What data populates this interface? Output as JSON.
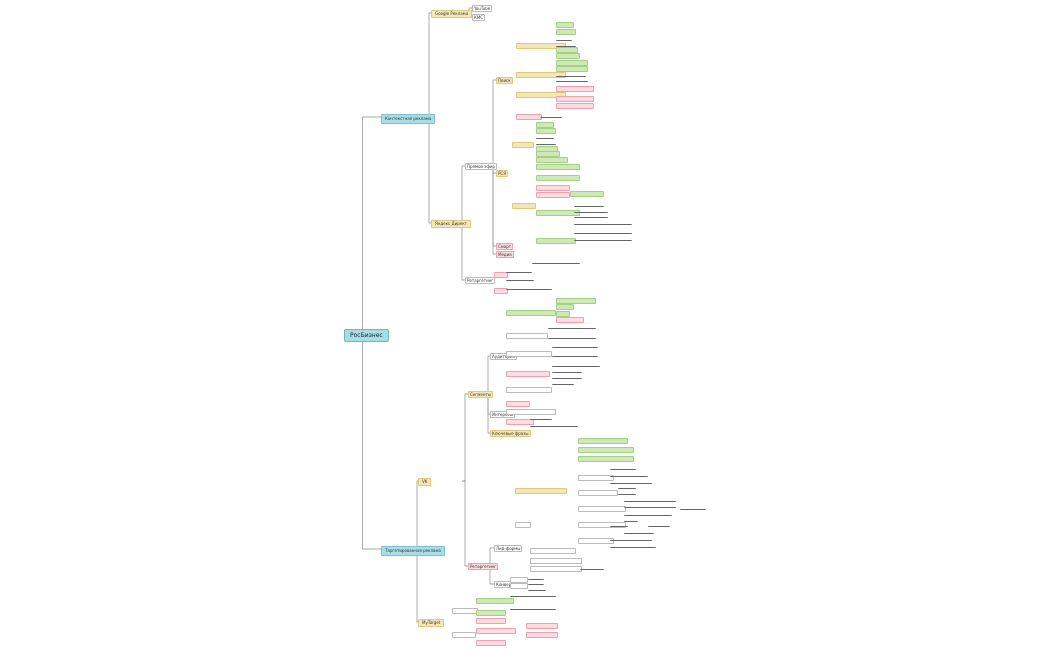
{
  "root": "РосБизнес",
  "branches": {
    "context": "Контекстная реклама",
    "target": "Таргетированная реклама"
  },
  "context": {
    "google": "Google Реклама",
    "google_children": [
      "YouTube",
      "КМС"
    ],
    "yandex": "Яндекс Директ",
    "yandex_sections": [
      "Прямой эфир",
      "Ретаргетинг"
    ],
    "search_label": "Поиск",
    "rsya_label": "РСЯ",
    "smart_label": "Смарт",
    "media_label": "Медиа"
  },
  "target": {
    "vk": "VK",
    "mytarget": "MyTarget",
    "sections": [
      "Сегменты",
      "Ретаргетинг",
      "Аудитории",
      "Интересы",
      "Ключевые фразы",
      "Лид-формы",
      "Конверсии"
    ]
  }
}
